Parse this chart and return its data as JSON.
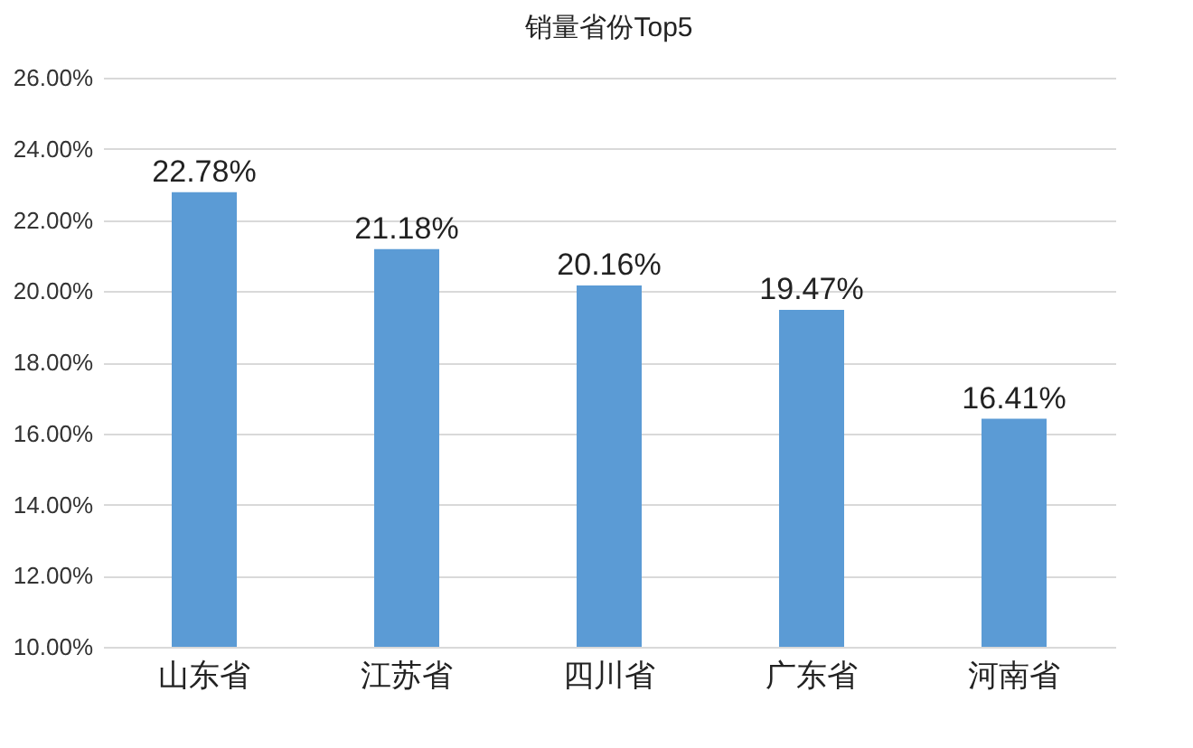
{
  "chart_data": {
    "type": "bar",
    "title": "销量省份Top5",
    "categories": [
      "山东省",
      "江苏省",
      "四川省",
      "广东省",
      "河南省"
    ],
    "values": [
      22.78,
      21.18,
      20.16,
      19.47,
      16.41
    ],
    "value_labels": [
      "22.78%",
      "21.18%",
      "20.16%",
      "19.47%",
      "16.41%"
    ],
    "color": "#5b9bd5",
    "ylim": [
      10,
      26
    ],
    "yticks": [
      {
        "value": 10,
        "label": "10.00%"
      },
      {
        "value": 12,
        "label": "12.00%"
      },
      {
        "value": 14,
        "label": "14.00%"
      },
      {
        "value": 16,
        "label": "16.00%"
      },
      {
        "value": 18,
        "label": "18.00%"
      },
      {
        "value": 20,
        "label": "20.00%"
      },
      {
        "value": 22,
        "label": "22.00%"
      },
      {
        "value": 24,
        "label": "24.00%"
      },
      {
        "value": 26,
        "label": "26.00%"
      }
    ],
    "grid": "y"
  }
}
